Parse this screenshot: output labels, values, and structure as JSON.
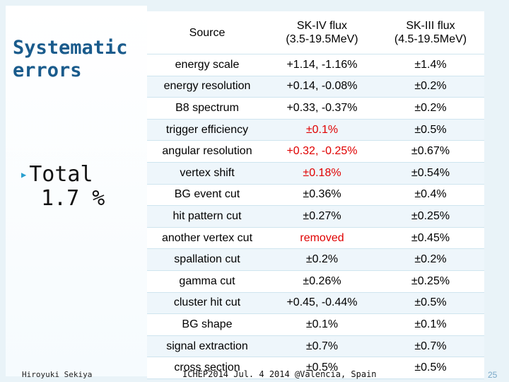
{
  "title": "Systematic\nerrors",
  "total": {
    "label": "Total",
    "value": "1.7 %"
  },
  "table": {
    "headers": [
      "Source",
      "SK-IV flux\n(3.5-19.5MeV)",
      "SK-III flux\n(4.5-19.5MeV)"
    ],
    "rows": [
      {
        "source": "energy scale",
        "sk4": "+1.14, -1.16%",
        "sk3": "±1.4%"
      },
      {
        "source": "energy resolution",
        "sk4": "+0.14, -0.08%",
        "sk3": "±0.2%"
      },
      {
        "source": "B8 spectrum",
        "sk4": "+0.33, -0.37%",
        "sk3": "±0.2%"
      },
      {
        "source": "trigger efficiency",
        "sk4": "±0.1%",
        "sk3": "±0.5%"
      },
      {
        "source": "angular resolution",
        "sk4": "+0.32, -0.25%",
        "sk3": "±0.67%"
      },
      {
        "source": "vertex shift",
        "sk4": "±0.18%",
        "sk3": "±0.54%"
      },
      {
        "source": "BG event cut",
        "sk4": "±0.36%",
        "sk3": "±0.4%"
      },
      {
        "source": "hit pattern cut",
        "sk4": "±0.27%",
        "sk3": "±0.25%"
      },
      {
        "source": "another vertex cut",
        "sk4": "removed",
        "sk3": "±0.45%"
      },
      {
        "source": "spallation cut",
        "sk4": "±0.2%",
        "sk3": "±0.2%"
      },
      {
        "source": "gamma cut",
        "sk4": "±0.26%",
        "sk3": "±0.25%"
      },
      {
        "source": "cluster hit cut",
        "sk4": "+0.45, -0.44%",
        "sk3": "±0.5%"
      },
      {
        "source": "BG shape",
        "sk4": "±0.1%",
        "sk3": "±0.1%"
      },
      {
        "source": "signal extraction",
        "sk4": "±0.7%",
        "sk3": "±0.7%"
      },
      {
        "source": "cross section",
        "sk4": "±0.5%",
        "sk3": "±0.5%"
      }
    ]
  },
  "footer": {
    "author": "Hiroyuki Sekiya",
    "event": "ICHEP2014  Jul. 4 2014  @Valencia, Spain",
    "page": "25"
  },
  "colors": {
    "title": "#1a5b8c",
    "highlight": "#e00000",
    "bullet": "#2aa0cf"
  }
}
